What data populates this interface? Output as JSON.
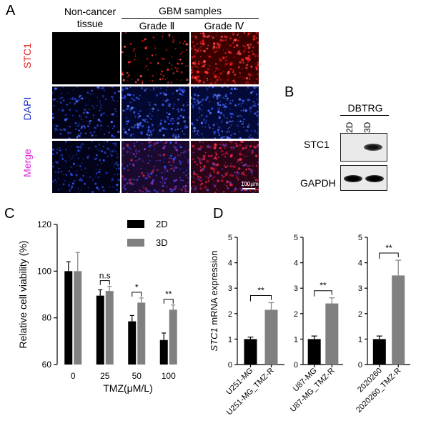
{
  "panel_letters": {
    "a": "A",
    "b": "B",
    "c": "C",
    "d": "D"
  },
  "panel_a": {
    "col_non_cancer": "Non-cancer tissue",
    "gbm_header": "GBM samples",
    "grade_ii": "Grade Ⅱ",
    "grade_iv": "Grade Ⅳ",
    "rows": [
      "STC1",
      "DAPI",
      "Merge"
    ],
    "row_colors": [
      "#e02020",
      "#2030d0",
      "#e020e0"
    ],
    "scale_bar": "100μm"
  },
  "panel_b": {
    "cell_line": "DBTRG",
    "lanes": [
      "2D",
      "3D"
    ],
    "bands": [
      "STC1",
      "GAPDH"
    ]
  },
  "chart_data": [
    {
      "type": "bar",
      "categories": [
        "0",
        "25",
        "50",
        "100"
      ],
      "series": [
        {
          "name": "2D",
          "values": [
            100,
            89.5,
            78.5,
            70.5
          ],
          "errors": [
            4,
            2.5,
            2.5,
            3
          ],
          "color": "#000000"
        },
        {
          "name": "3D",
          "values": [
            100,
            91.5,
            86.5,
            83.5
          ],
          "errors": [
            8,
            2,
            2,
            2
          ],
          "color": "#808080"
        }
      ],
      "ylabel": "Relative cell viability (%)",
      "xlabel": "TMZ(μM/L)",
      "ylim": [
        60,
        120
      ],
      "yticks": [
        60,
        80,
        100,
        120
      ],
      "significance": [
        "n.s",
        "*",
        "**"
      ],
      "legend": "top-right"
    },
    {
      "type": "bar",
      "categories": [
        "U251-MG",
        "U251-MG_TMZ-R"
      ],
      "values": [
        1.0,
        2.15
      ],
      "errors": [
        0.08,
        0.28
      ],
      "colors": [
        "#000000",
        "#808080"
      ],
      "ylabel": "STC1 mRNA expression",
      "ylim": [
        0,
        5
      ],
      "yticks": [
        0,
        1,
        2,
        3,
        4,
        5
      ],
      "significance": "**"
    },
    {
      "type": "bar",
      "categories": [
        "U87-MG",
        "U87-MG_TMZ-R"
      ],
      "values": [
        1.0,
        2.4
      ],
      "errors": [
        0.12,
        0.22
      ],
      "colors": [
        "#000000",
        "#808080"
      ],
      "ylim": [
        0,
        5
      ],
      "yticks": [
        0,
        1,
        2,
        3,
        4,
        5
      ],
      "significance": "**"
    },
    {
      "type": "bar",
      "categories": [
        "2020260",
        "2020260_TMZ-R"
      ],
      "values": [
        1.0,
        3.5
      ],
      "errors": [
        0.12,
        0.6
      ],
      "colors": [
        "#000000",
        "#808080"
      ],
      "ylim": [
        0,
        5
      ],
      "yticks": [
        0,
        1,
        2,
        3,
        4,
        5
      ],
      "significance": "**"
    }
  ]
}
